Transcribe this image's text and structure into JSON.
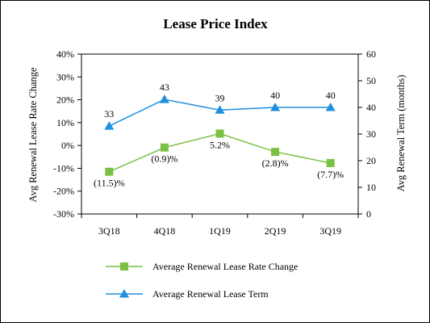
{
  "chart_data": {
    "type": "line",
    "title": "Lease Price Index",
    "categories": [
      "3Q18",
      "4Q18",
      "1Q19",
      "2Q19",
      "3Q19"
    ],
    "left_axis": {
      "label": "Avg Renewal Lease Rate Change",
      "ylim": [
        -30,
        40
      ],
      "ticks": [
        "40%",
        "30%",
        "20%",
        "10%",
        "0%",
        "-10%",
        "-20%",
        "-30%"
      ]
    },
    "right_axis": {
      "label": "Avg Renewal Term (months)",
      "ylim": [
        0,
        60
      ],
      "ticks": [
        "60",
        "50",
        "40",
        "30",
        "20",
        "10",
        "0"
      ]
    },
    "series": [
      {
        "name": "Average Renewal Lease Rate Change",
        "axis": "left",
        "marker": "square",
        "color": "#7ac143",
        "values": [
          -11.5,
          -0.9,
          5.2,
          -2.8,
          -7.7
        ],
        "labels": [
          "(11.5)%",
          "(0.9)%",
          "5.2%",
          "(2.8)%",
          "(7.7)%"
        ]
      },
      {
        "name": "Average Renewal Lease Term",
        "axis": "right",
        "marker": "triangle",
        "color": "#1f8fe0",
        "values": [
          33,
          43,
          39,
          40,
          40
        ],
        "labels": [
          "33",
          "43",
          "39",
          "40",
          "40"
        ]
      }
    ],
    "grid": false,
    "legend_position": "bottom"
  }
}
